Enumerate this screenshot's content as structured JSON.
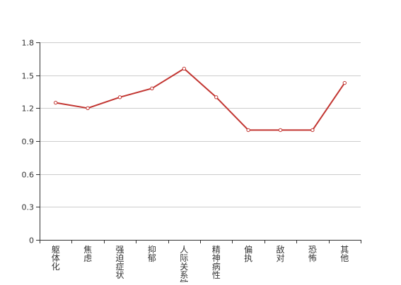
{
  "chart_data": {
    "type": "line",
    "categories": [
      "躯体化",
      "焦虑",
      "强迫症状",
      "抑郁",
      "人际关系敏感",
      "精神病性",
      "偏执",
      "敌对",
      "恐怖",
      "其他"
    ],
    "series": [
      {
        "values": [
          1.25,
          1.2,
          1.3,
          1.38,
          1.56,
          1.3,
          1.0,
          1.0,
          1.0,
          1.43
        ]
      }
    ],
    "ylim": [
      0,
      1.8
    ],
    "yticks": [
      "0",
      "0.3",
      "0.6",
      "0.9",
      "1.2",
      "1.5",
      "1.8"
    ],
    "ytick_values": [
      0,
      0.3,
      0.6,
      0.9,
      1.2,
      1.5,
      1.8
    ],
    "grid": true,
    "line_color": "#c23531",
    "grid_color": "#cccccc",
    "axis_color": "#333333",
    "label_orientation": "vertical"
  }
}
